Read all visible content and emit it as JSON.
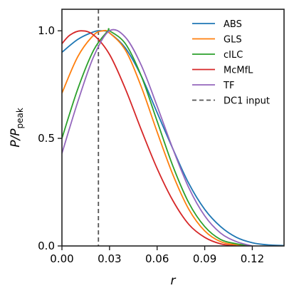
{
  "chart_data": {
    "type": "line",
    "xlabel": "r",
    "ylabel": "P/P",
    "ylabel_sub": "peak",
    "xlim": [
      0.0,
      0.14
    ],
    "ylim": [
      0.0,
      1.1
    ],
    "xticks": [
      0.0,
      0.03,
      0.06,
      0.09,
      0.12
    ],
    "xtick_labels": [
      "0.00",
      "0.03",
      "0.06",
      "0.09",
      "0.12"
    ],
    "yticks": [
      0.0,
      0.5,
      1.0
    ],
    "ytick_labels": [
      "0.0",
      "0.5",
      "1.0"
    ],
    "grid": false,
    "legend_position": "top-right",
    "series": [
      {
        "name": "ABS",
        "color": "#1f77b4",
        "x": [
          0,
          0.01,
          0.02,
          0.025,
          0.03,
          0.04,
          0.05,
          0.06,
          0.07,
          0.08,
          0.09,
          0.1,
          0.11,
          0.12,
          0.13,
          0.14
        ],
        "y": [
          0.9,
          0.96,
          0.995,
          1.0,
          0.99,
          0.92,
          0.79,
          0.62,
          0.45,
          0.29,
          0.17,
          0.09,
          0.04,
          0.015,
          0.005,
          0.002
        ]
      },
      {
        "name": "GLS",
        "color": "#ff7f0e",
        "x": [
          0,
          0.01,
          0.02,
          0.026,
          0.03,
          0.04,
          0.05,
          0.06,
          0.07,
          0.08,
          0.09,
          0.1,
          0.11,
          0.12
        ],
        "y": [
          0.71,
          0.88,
          0.98,
          1.0,
          0.99,
          0.91,
          0.74,
          0.53,
          0.33,
          0.17,
          0.07,
          0.02,
          0.005,
          0.0
        ]
      },
      {
        "name": "cILC",
        "color": "#2ca02c",
        "x": [
          0,
          0.01,
          0.02,
          0.029,
          0.03,
          0.04,
          0.05,
          0.06,
          0.07,
          0.08,
          0.09,
          0.1,
          0.11,
          0.12
        ],
        "y": [
          0.5,
          0.73,
          0.91,
          1.0,
          1.0,
          0.94,
          0.79,
          0.58,
          0.37,
          0.2,
          0.09,
          0.03,
          0.01,
          0.0
        ]
      },
      {
        "name": "McMfL",
        "color": "#d62728",
        "x": [
          0,
          0.005,
          0.012,
          0.02,
          0.03,
          0.04,
          0.05,
          0.06,
          0.07,
          0.08,
          0.09,
          0.1,
          0.11
        ],
        "y": [
          0.94,
          0.98,
          1.0,
          0.98,
          0.89,
          0.73,
          0.54,
          0.36,
          0.21,
          0.1,
          0.04,
          0.01,
          0.0
        ]
      },
      {
        "name": "TF",
        "color": "#9467bd",
        "x": [
          0,
          0.01,
          0.02,
          0.03,
          0.04,
          0.05,
          0.06,
          0.07,
          0.08,
          0.09,
          0.1,
          0.11,
          0.12
        ],
        "y": [
          0.43,
          0.67,
          0.88,
          1.0,
          0.97,
          0.84,
          0.65,
          0.45,
          0.27,
          0.14,
          0.06,
          0.02,
          0.0
        ]
      }
    ],
    "reference_line": {
      "name": "DC1 input",
      "x": 0.023,
      "color": "#555555",
      "style": "dashed"
    }
  }
}
